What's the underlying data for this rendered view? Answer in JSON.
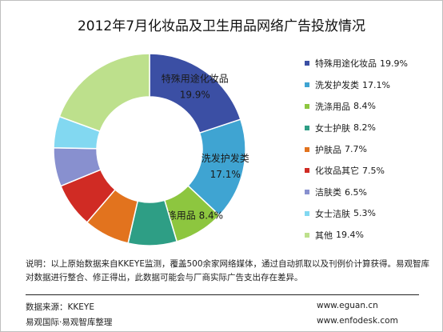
{
  "chart_data": {
    "type": "pie",
    "subtype": "donut",
    "title": "2012年7月化妆品及卫生用品网络广告投放情况",
    "unit": "%",
    "legend_position": "right",
    "slices": [
      {
        "name": "特殊用途化妆品",
        "value": 19.9,
        "color": "#3b4fa4",
        "label": "特殊用途化妆品\n19.9%"
      },
      {
        "name": "洗发护发类",
        "value": 17.1,
        "color": "#3fa4d2",
        "label": "洗发护发类\n17.1%"
      },
      {
        "name": "洗涤用品",
        "value": 8.4,
        "color": "#8dc63f",
        "label": "洗涤用品 8.4%"
      },
      {
        "name": "女士护肤",
        "value": 8.2,
        "color": "#2e9e85",
        "label": ""
      },
      {
        "name": "护肤品",
        "value": 7.7,
        "color": "#e2731e",
        "label": ""
      },
      {
        "name": "化妆品其它",
        "value": 7.5,
        "color": "#d02b24",
        "label": ""
      },
      {
        "name": "洁肤类",
        "value": 6.5,
        "color": "#8890cf",
        "label": ""
      },
      {
        "name": "女士洁肤",
        "value": 5.3,
        "color": "#82d8f1",
        "label": ""
      },
      {
        "name": "其他",
        "value": 19.4,
        "color": "#bde08c",
        "label": ""
      }
    ]
  },
  "note": "说明：以上原始数据来自KKEYE监测，覆盖500余家网络媒体，通过自动抓取以及刊例价计算获得。易观智库对数据进行整合、修正得出，此数据可能会与厂商实际广告支出存在差异。",
  "footer": {
    "source": "数据来源：KKEYE",
    "brand": "易观国际·易观智库整理",
    "url1": "www.eguan.cn",
    "url2": "www.enfodesk.com"
  }
}
